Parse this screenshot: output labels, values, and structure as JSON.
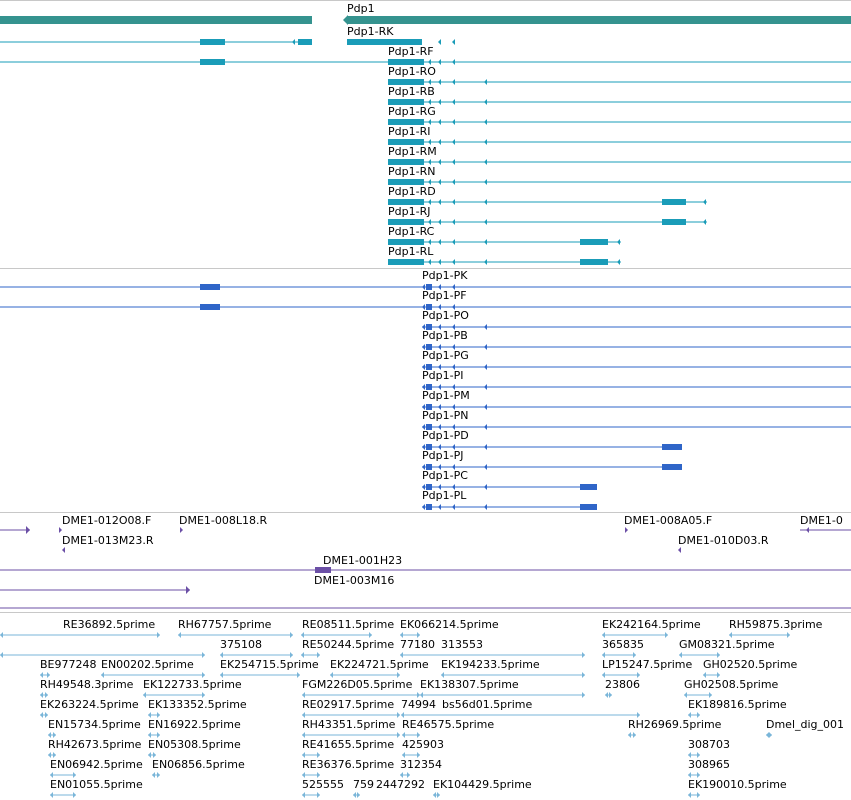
{
  "colors": {
    "gene": "#35938f",
    "rna": "#1a9cb8",
    "cds": "#2f65c8",
    "clone": "#6b4fa6",
    "est": "#7ab6d9",
    "divider": "#c8c8c8"
  },
  "tracks": {
    "gene": {
      "name": "Pdp1",
      "label": "Pdp1"
    },
    "transcripts": [
      "Pdp1-RK",
      "Pdp1-RF",
      "Pdp1-RO",
      "Pdp1-RB",
      "Pdp1-RG",
      "Pdp1-RI",
      "Pdp1-RM",
      "Pdp1-RN",
      "Pdp1-RD",
      "Pdp1-RJ",
      "Pdp1-RC",
      "Pdp1-RL"
    ],
    "proteins": [
      "Pdp1-PK",
      "Pdp1-PF",
      "Pdp1-PO",
      "Pdp1-PB",
      "Pdp1-PG",
      "Pdp1-PI",
      "Pdp1-PM",
      "Pdp1-PN",
      "Pdp1-PD",
      "Pdp1-PJ",
      "Pdp1-PC",
      "Pdp1-PL"
    ],
    "clones": [
      "DME1-012O08.F",
      "DME1-008L18.R",
      "DME1-008A05.F",
      "DME1-0",
      "DME1-013M23.R",
      "DME1-010D03.R",
      "DME1-001H23",
      "DME1-003M16"
    ],
    "ests": [
      "RE36892.5prime",
      "RH67757.5prime",
      "RE08511.5prime",
      "EK066214.5prime",
      "EK242164.5prime",
      "RH59875.3prime",
      "375108",
      "RE50244.5prime",
      "77180",
      "313553",
      "365835",
      "GM08321.5prime",
      "BE977248",
      "EN00202.5prime",
      "EK254715.5prime",
      "EK224721.5prime",
      "EK194233.5prime",
      "LP15247.5prime",
      "GH02520.5prime",
      "RH49548.3prime",
      "EK122733.5prime",
      "FGM226D05.5prime",
      "EK138307.5prime",
      "23806",
      "GH02508.5prime",
      "EK263224.5prime",
      "EK133352.5prime",
      "RE02917.5prime",
      "74994",
      "bs56d01.5prime",
      "EK189816.5prime",
      "EN15734.5prime",
      "EN16922.5prime",
      "RH43351.5prime",
      "RE46575.5prime",
      "RH26969.5prime",
      "Dmel_dig_001",
      "RH42673.5prime",
      "EN05308.5prime",
      "RE41655.5prime",
      "425903",
      "308703",
      "EN06942.5prime",
      "EN06856.5prime",
      "RE36376.5prime",
      "312354",
      "308965",
      "EN01055.5prime",
      "525555",
      "759",
      "2447292",
      "EK104429.5prime",
      "EK190010.5prime"
    ]
  }
}
